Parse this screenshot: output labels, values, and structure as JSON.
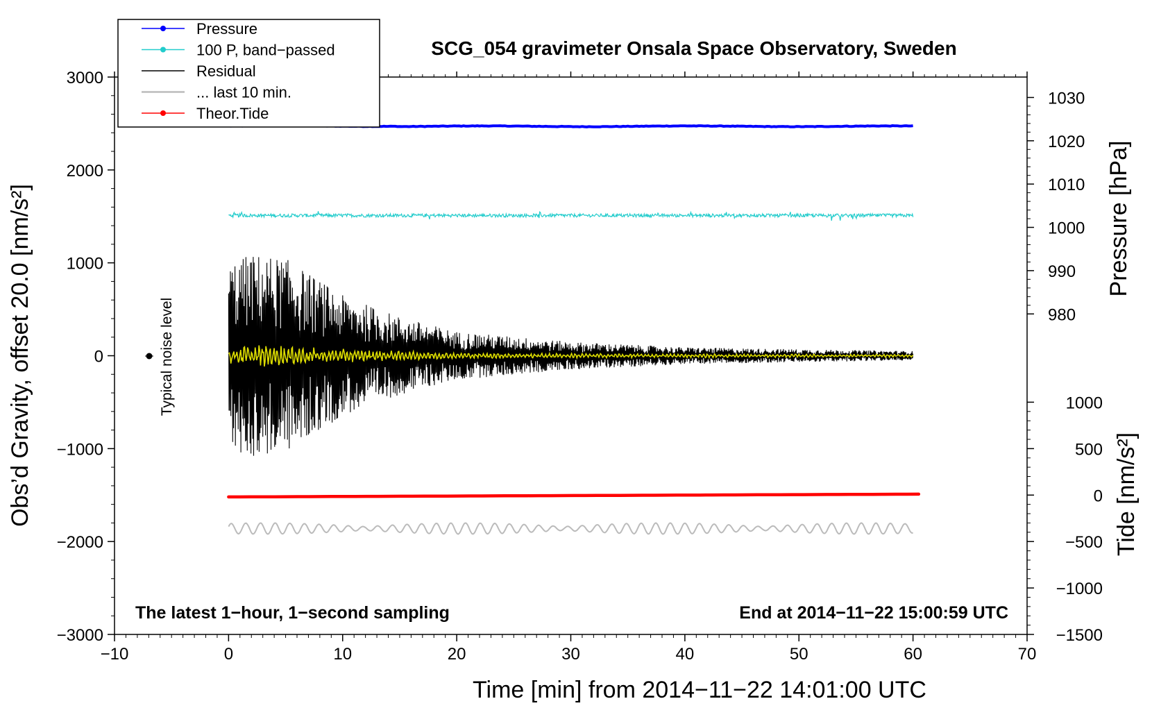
{
  "chart_data": {
    "type": "line",
    "title": "SCG_054 gravimeter Onsala Space Observatory, Sweden",
    "xlabel": "Time [min] from 2014−11−22 14:01:00 UTC",
    "ylabel_left": "Obs’d Gravity, offset 20.0 [nm/s²]",
    "ylabel_right_top": "Pressure [hPa]",
    "ylabel_right_bottom": "Tide [nm/s²]",
    "xlim": [
      -10,
      70
    ],
    "ylim_left": [
      -3000,
      3000
    ],
    "x_ticks": [
      -10,
      0,
      10,
      20,
      30,
      40,
      50,
      60,
      70
    ],
    "x_tick_labels": [
      "−10",
      "0",
      "10",
      "20",
      "30",
      "40",
      "50",
      "60",
      "70"
    ],
    "y_left_ticks": [
      -3000,
      -2000,
      -1000,
      0,
      1000,
      2000,
      3000
    ],
    "y_left_tick_labels": [
      "−3000",
      "−2000",
      "−1000",
      "0",
      "1000",
      "2000",
      "3000"
    ],
    "pressure_axis": {
      "ticks": [
        980,
        990,
        1000,
        1010,
        1020,
        1030
      ],
      "tick_labels": [
        "980",
        "990",
        "1000",
        "1010",
        "1020",
        "1030"
      ],
      "gravity_equivalent": {
        "hpa_a": 980,
        "g_a": 450,
        "hpa_b": 1030,
        "g_b": 2780
      }
    },
    "tide_axis": {
      "ticks": [
        -1500,
        -1000,
        -500,
        0,
        500,
        1000
      ],
      "tick_labels": [
        "−1500",
        "−1000",
        "−500",
        "0",
        "500",
        "1000"
      ],
      "gravity_equivalent": {
        "tide_a": -1500,
        "g_a": -3000,
        "tide_b": 1000,
        "g_b": -500
      }
    },
    "legend": {
      "position": "top-left",
      "entries": [
        {
          "label": "Pressure",
          "color": "#0000ff",
          "marker": true
        },
        {
          "label": "100 P, band−passed",
          "color": "#22cccc",
          "marker": true
        },
        {
          "label": "Residual",
          "color": "#000000",
          "marker": false
        },
        {
          "label": "... last 10 min.",
          "color": "#bbbbbb",
          "marker": false
        },
        {
          "label": "Theor.Tide",
          "color": "#ff0000",
          "marker": true
        }
      ]
    },
    "series": [
      {
        "name": "Pressure",
        "color": "#0000ff",
        "x_range": [
          0,
          60
        ],
        "level_hpa": 1022.5,
        "level_gravity": 2470
      },
      {
        "name": "100 P, band−passed",
        "color": "#22cccc",
        "x_range": [
          0,
          60
        ],
        "level_gravity": 1510,
        "amplitude_gravity": 40
      },
      {
        "name": "Residual",
        "color": "#000000",
        "x_range": [
          0,
          60
        ],
        "level_gravity": 0,
        "envelope_minutes": [
          0,
          2,
          5,
          10,
          15,
          20,
          30,
          40,
          50,
          60
        ],
        "envelope_amplitude": [
          1000,
          1100,
          1050,
          650,
          420,
          260,
          150,
          90,
          70,
          50
        ]
      },
      {
        "name": "Residual (smoothed)",
        "color": "#dddd00",
        "x_range": [
          0,
          60
        ],
        "level_gravity": 0,
        "envelope_minutes": [
          0,
          5,
          10,
          20,
          40,
          60
        ],
        "envelope_amplitude": [
          120,
          110,
          70,
          30,
          20,
          15
        ]
      },
      {
        "name": "Theor.Tide",
        "color": "#ff0000",
        "x_range": [
          0,
          60.5
        ],
        "values_tide": [
          -20,
          10
        ],
        "values_gravity": [
          -1520,
          -1490
        ]
      },
      {
        "name": "... last 10 min.",
        "color": "#bbbbbb",
        "x_range": [
          0,
          60
        ],
        "level_gravity": -1860,
        "amplitude_gravity": 60
      }
    ],
    "noise_marker": {
      "x": -7,
      "y": 0,
      "label": "Typical noise level"
    },
    "annotations": {
      "bottom_left": "The latest 1−hour, 1−second sampling",
      "bottom_right": "End at 2014−11−22 15:00:59 UTC"
    }
  }
}
